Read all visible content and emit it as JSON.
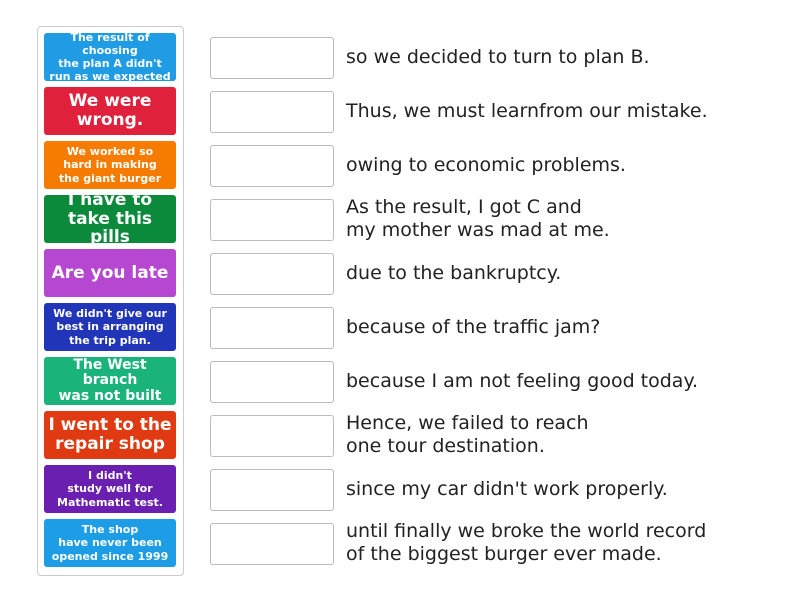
{
  "cards": [
    {
      "text": "The result of choosing\nthe plan A didn't\nrun as we expected",
      "color": "#1f9ce4"
    },
    {
      "text": "We were\nwrong.",
      "color": "#e0213c"
    },
    {
      "text": "We worked so\nhard in making\nthe giant burger",
      "color": "#f57c00"
    },
    {
      "text": "I have to\ntake this pills",
      "color": "#0b8a3c"
    },
    {
      "text": "Are you late",
      "color": "#b547d0"
    },
    {
      "text": "We didn't give our\nbest in arranging\nthe trip plan.",
      "color": "#2135b8"
    },
    {
      "text": "The West branch\nwas not built",
      "color": "#1ab37a"
    },
    {
      "text": "I went to the\nrepair shop",
      "color": "#e03a12"
    },
    {
      "text": "I didn't\nstudy well for\nMathematic test.",
      "color": "#6a1fb0"
    },
    {
      "text": "The shop\nhave never been\nopened since 1999",
      "color": "#1c9de6"
    }
  ],
  "endings": [
    "so we decided to turn to plan B.",
    "Thus, we must learnfrom our mistake.",
    "owing to economic problems.",
    "As the result, I got C and\nmy mother was mad at me.",
    "due to the bankruptcy.",
    "because of the traffic jam?",
    "because I am not feeling good today.",
    "Hence, we failed to reach\none tour destination.",
    "since my car didn't work properly.",
    "until finally we broke the world record\nof the biggest burger ever made."
  ]
}
